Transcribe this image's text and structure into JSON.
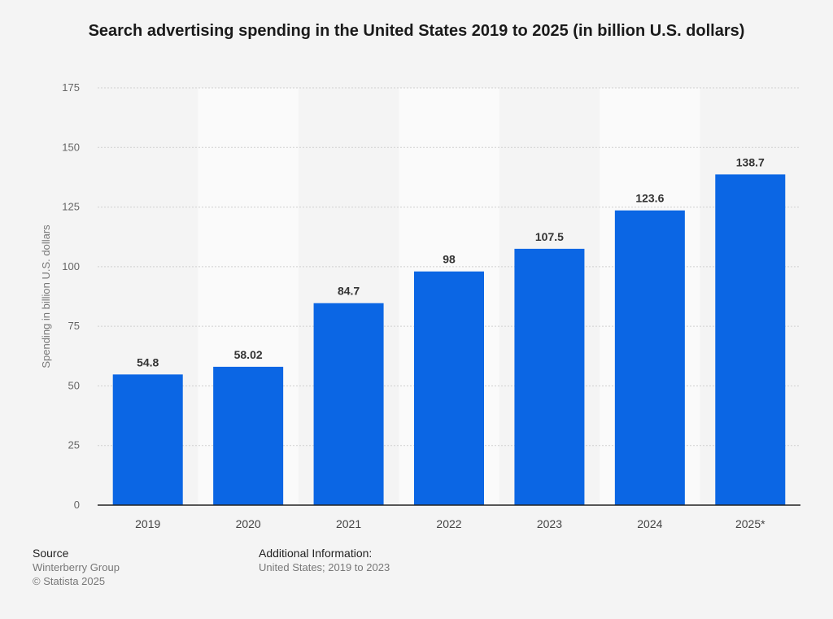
{
  "chart_data": {
    "type": "bar",
    "title": "Search advertising spending in the United States 2019 to 2025 (in billion U.S. dollars)",
    "ylabel": "Spending in billion U.S. dollars",
    "xlabel": "",
    "categories": [
      "2019",
      "2020",
      "2021",
      "2022",
      "2023",
      "2024",
      "2025*"
    ],
    "values": [
      54.8,
      58.02,
      84.7,
      98,
      107.5,
      123.6,
      138.7
    ],
    "value_labels": [
      "54.8",
      "58.02",
      "84.7",
      "98",
      "107.5",
      "123.6",
      "138.7"
    ],
    "ylim": [
      0,
      175
    ],
    "yticks": [
      0,
      25,
      50,
      75,
      100,
      125,
      150,
      175
    ],
    "grid": true,
    "bar_color": "#0b66e4"
  },
  "footer": {
    "source_heading": "Source",
    "source_lines": [
      "Winterberry Group",
      "© Statista 2025"
    ],
    "info_heading": "Additional Information:",
    "info_text": "United States; 2019 to 2023"
  }
}
